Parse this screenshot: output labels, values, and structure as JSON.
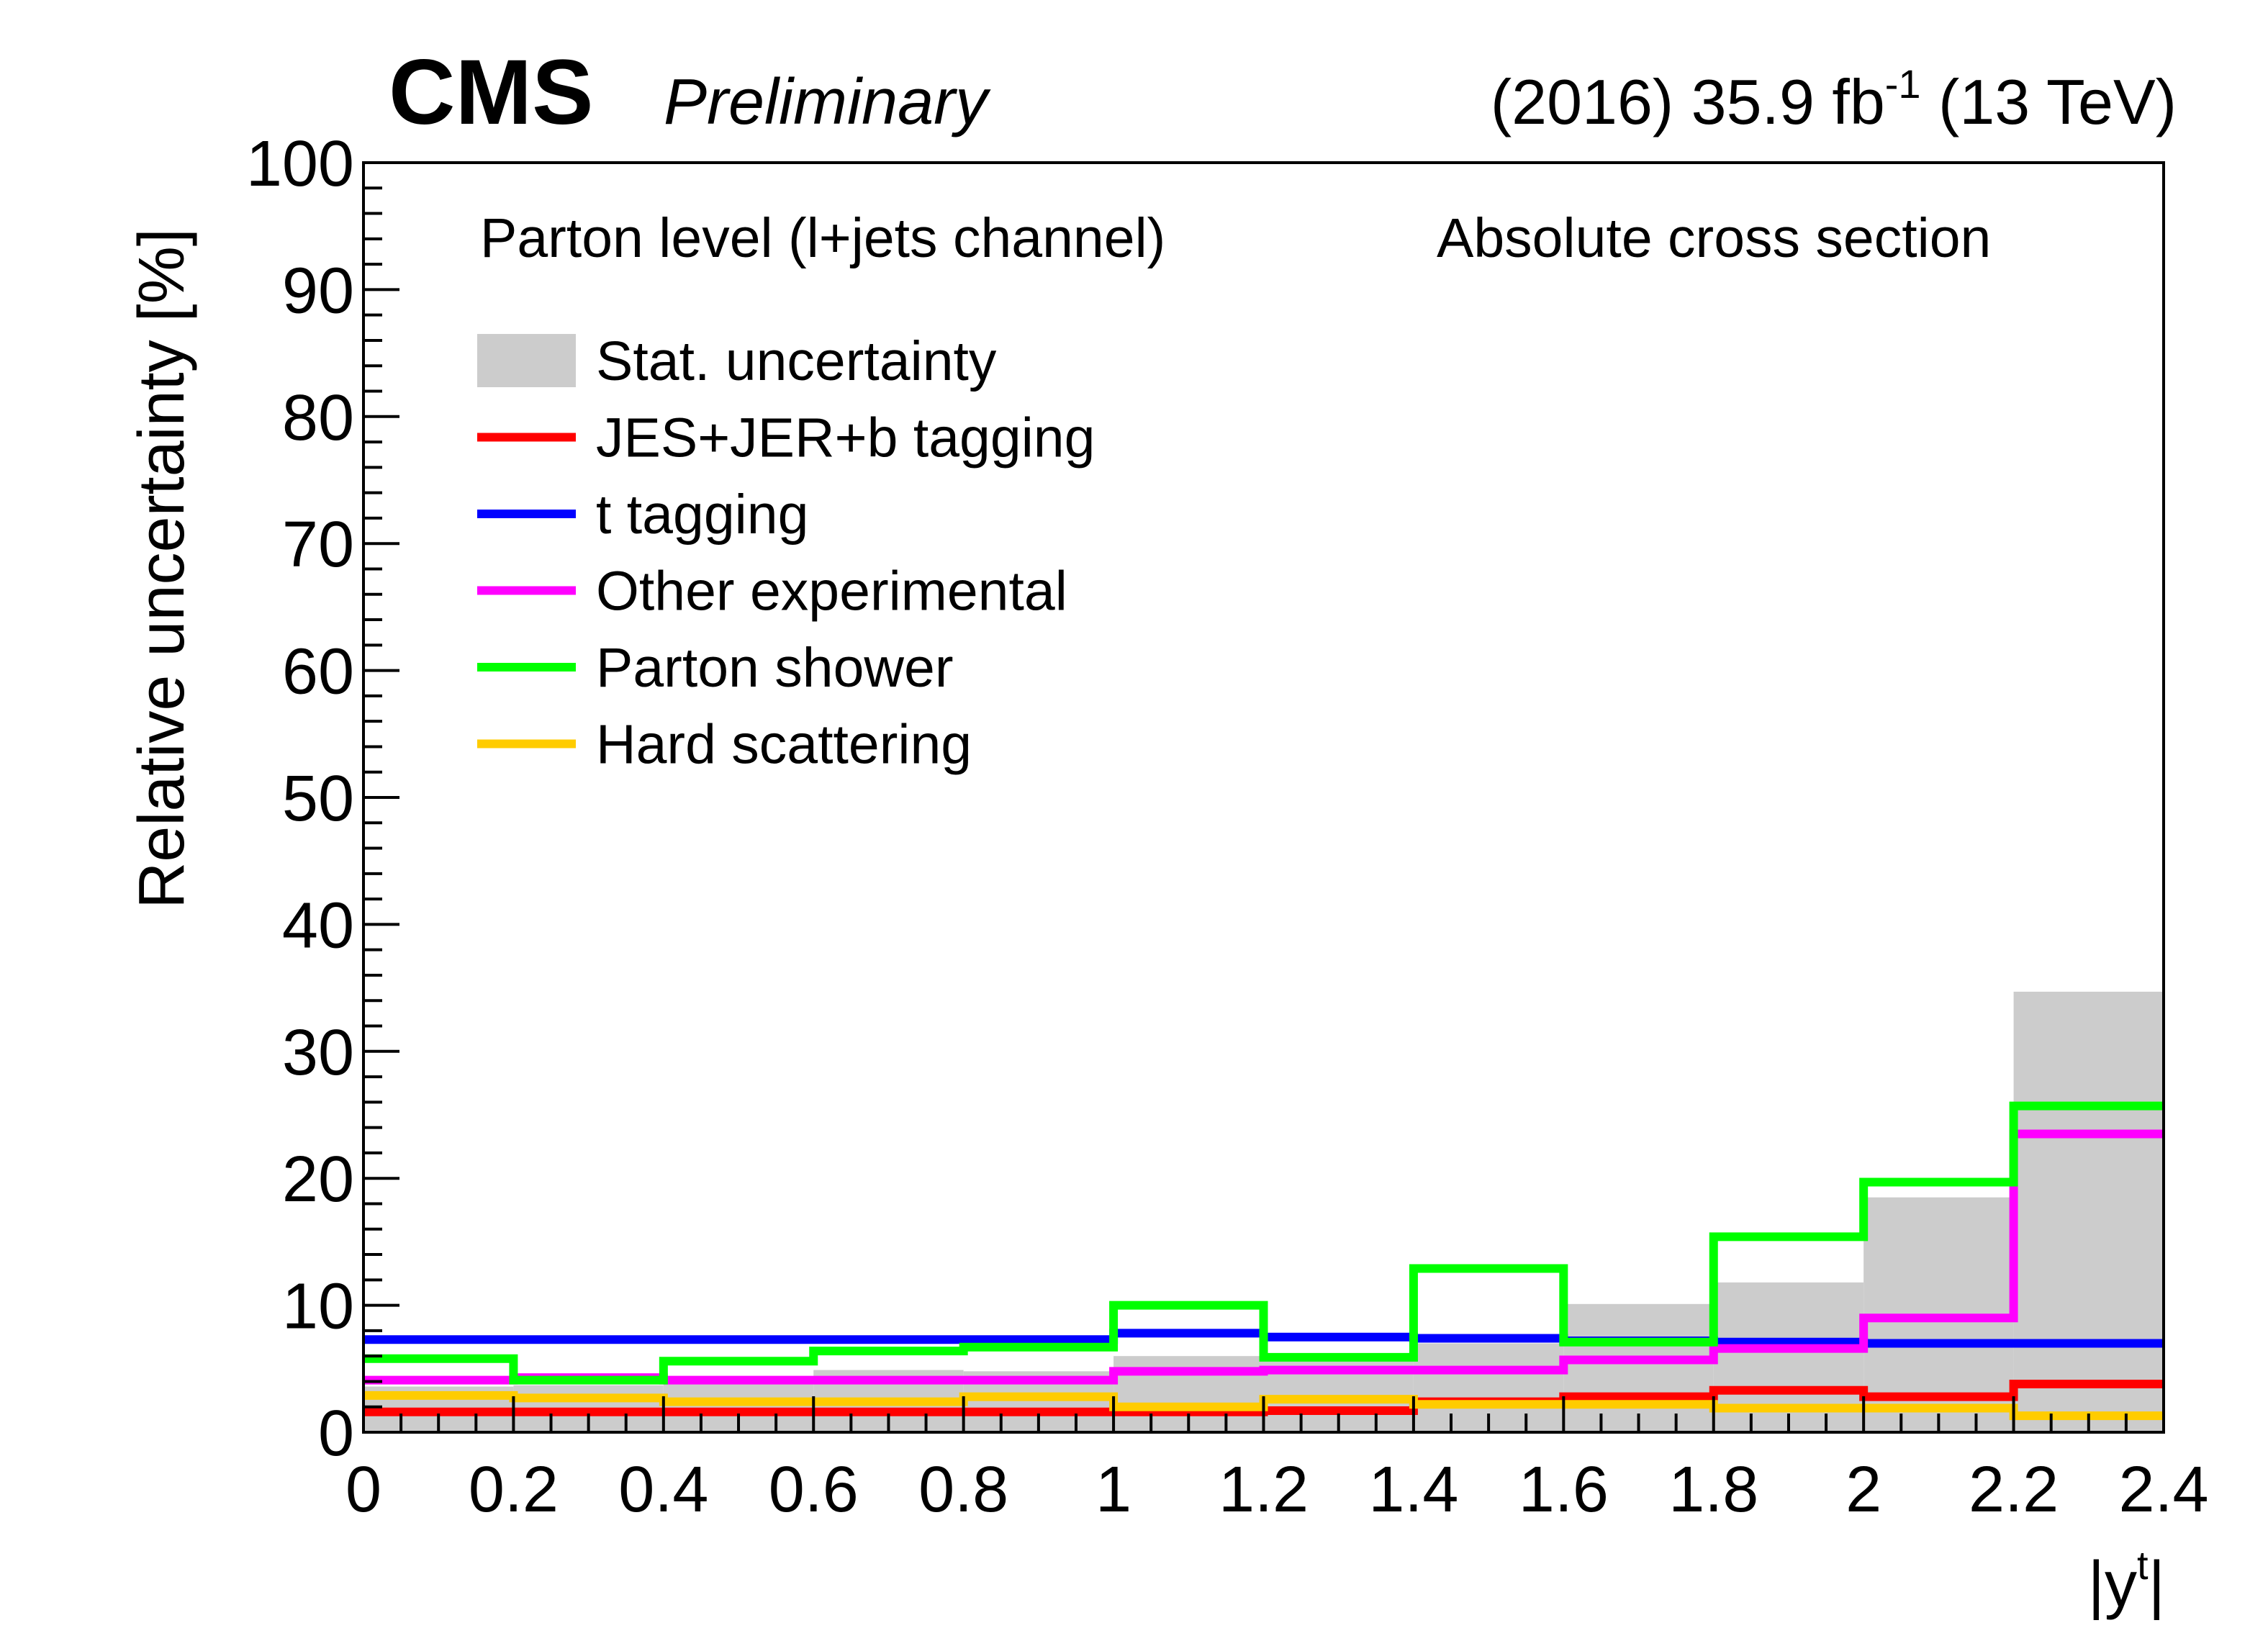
{
  "header": {
    "experiment": "CMS",
    "status": "Preliminary",
    "lumi_prefix": "(2016) 35.9 fb",
    "lumi_exp": "-1",
    "lumi_suffix": " (13 TeV)"
  },
  "chart_data": {
    "type": "histogram-step",
    "title": "",
    "xlabel": "|y",
    "xlabel_sup": "t",
    "xlabel_end": "|",
    "ylabel": "Relative uncertainty [%]",
    "xlim": [
      0,
      2.4
    ],
    "ylim": [
      0,
      100
    ],
    "x_ticks": [
      "0",
      "0.2",
      "0.4",
      "0.6",
      "0.8",
      "1",
      "1.2",
      "1.4",
      "1.6",
      "1.8",
      "2",
      "2.2",
      "2.4"
    ],
    "y_ticks": [
      "0",
      "10",
      "20",
      "30",
      "40",
      "50",
      "60",
      "70",
      "80",
      "90",
      "100"
    ],
    "annotations": [
      "Parton level (l+jets channel)",
      "Absolute cross section"
    ],
    "legend_placement": "top-left",
    "bin_edges": [
      0,
      0.2,
      0.4,
      0.6,
      0.8,
      1.0,
      1.2,
      1.4,
      1.6,
      1.8,
      2.0,
      2.2,
      2.4
    ],
    "series": [
      {
        "name": "Stat. uncertainty",
        "style": "fill",
        "color": "#cccccc",
        "values": [
          3.6,
          3.7,
          3.9,
          4.9,
          4.8,
          6.0,
          6.2,
          7.0,
          10.1,
          11.8,
          18.5,
          34.7
        ]
      },
      {
        "name": "JES+JER+b tagging",
        "style": "line",
        "color": "#ff0000",
        "values": [
          1.6,
          1.6,
          1.6,
          1.6,
          1.6,
          1.6,
          1.7,
          2.4,
          2.8,
          3.3,
          2.8,
          3.8
        ]
      },
      {
        "name": "t tagging",
        "style": "line",
        "color": "#0000ff",
        "values": [
          7.3,
          7.3,
          7.3,
          7.3,
          7.3,
          7.8,
          7.5,
          7.4,
          7.2,
          7.1,
          7.0,
          7.0
        ]
      },
      {
        "name": "Other experimental",
        "style": "line",
        "color": "#ff00ff",
        "values": [
          4.1,
          4.3,
          4.1,
          4.1,
          4.1,
          4.8,
          4.9,
          4.9,
          5.7,
          6.6,
          9.0,
          23.5
        ]
      },
      {
        "name": "Parton shower",
        "style": "line",
        "color": "#00ff00",
        "values": [
          5.8,
          4.1,
          5.6,
          6.4,
          6.7,
          10.0,
          5.9,
          12.9,
          7.1,
          15.4,
          19.7,
          25.7
        ]
      },
      {
        "name": "Hard scattering",
        "style": "line",
        "color": "#ffcc00",
        "values": [
          2.9,
          2.7,
          2.4,
          2.4,
          2.8,
          2.0,
          2.6,
          2.2,
          2.2,
          1.9,
          1.9,
          1.3
        ]
      }
    ]
  }
}
